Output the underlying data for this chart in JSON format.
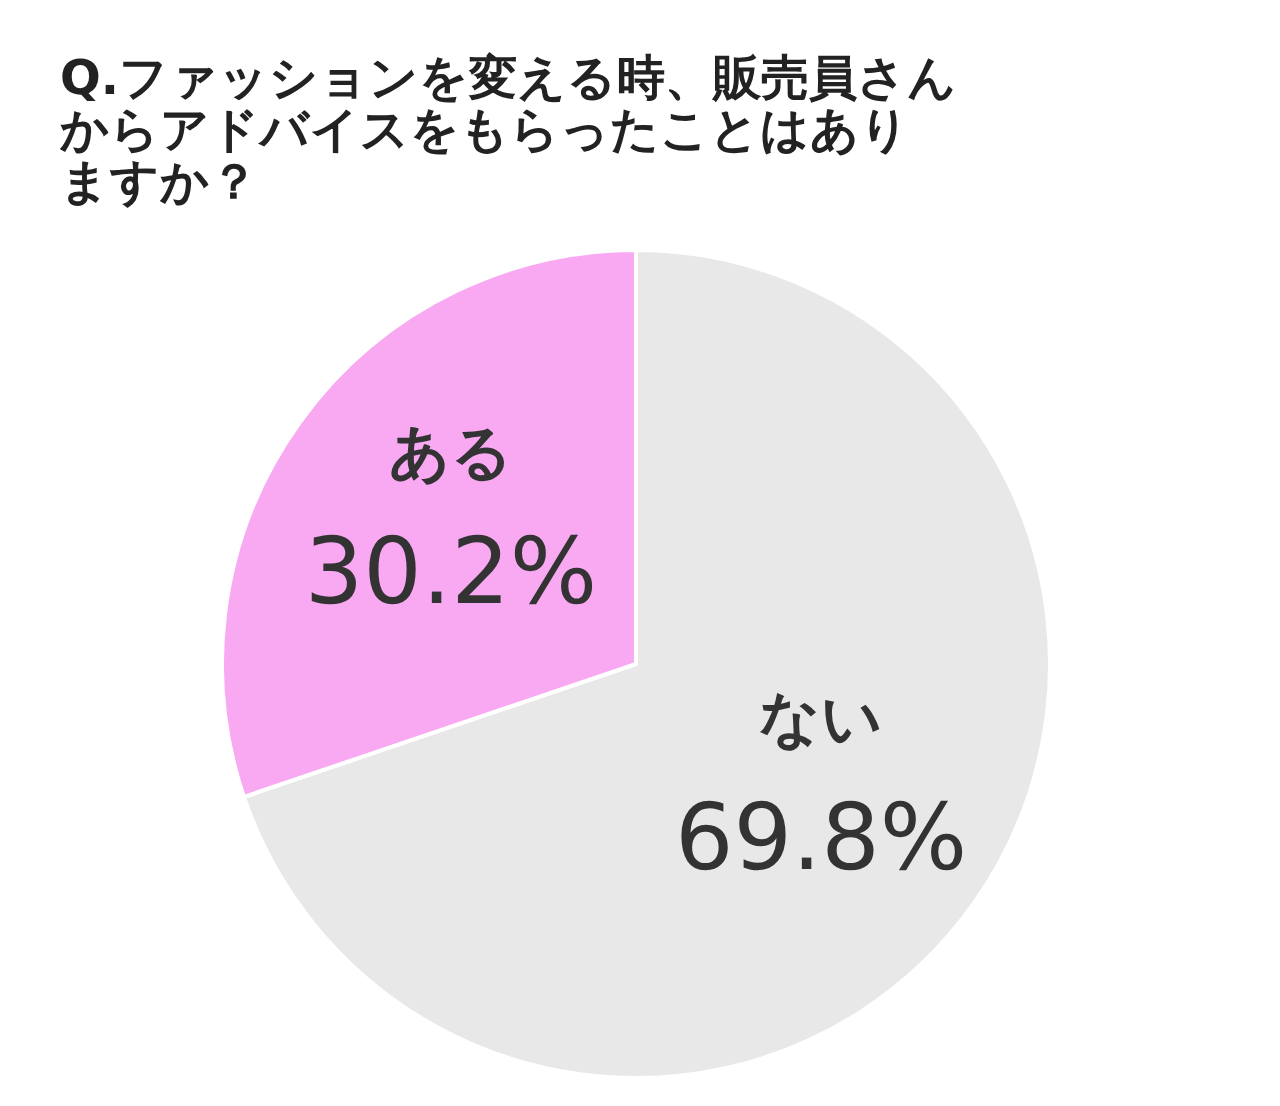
{
  "chart_data": {
    "type": "pie",
    "title": "Q.ファッションを変える時、販売員さんからアドバイスをもらったことはありますか？",
    "categories": [
      "ない",
      "ある"
    ],
    "values": [
      69.8,
      30.2
    ],
    "colors": [
      "#e8e8e8",
      "#f9a8f2"
    ],
    "value_labels": [
      "69.8%",
      "30.2%"
    ]
  }
}
